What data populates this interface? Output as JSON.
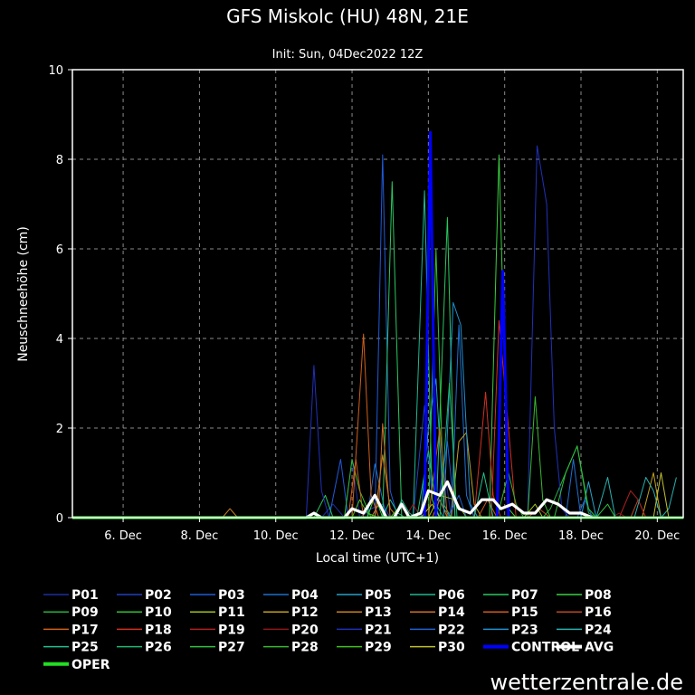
{
  "chart_data": {
    "type": "line",
    "title": "GFS Miskolc (HU) 48N, 21E",
    "subtitle": "Init: Sun, 04Dec2022 12Z",
    "xlabel": "Local time (UTC+1)",
    "ylabel": "Neuschneehöhe (cm)",
    "ylim": [
      0,
      10
    ],
    "y_ticks": [
      "0",
      "2",
      "4",
      "6",
      "8",
      "10"
    ],
    "x_ticks": [
      {
        "t": 1.0,
        "label": "6. Dec"
      },
      {
        "t": 3.0,
        "label": "8. Dec"
      },
      {
        "t": 5.0,
        "label": "10. Dec"
      },
      {
        "t": 7.0,
        "label": "12. Dec"
      },
      {
        "t": 9.0,
        "label": "14. Dec"
      },
      {
        "t": 11.0,
        "label": "16. Dec"
      },
      {
        "t": 13.0,
        "label": "18. Dec"
      },
      {
        "t": 15.0,
        "label": "20. Dec"
      }
    ],
    "xlim": [
      -0.33,
      15.68
    ],
    "grid": true,
    "legend_position": "bottom",
    "series": [
      {
        "name": "P01",
        "color": "#1a2fa0",
        "width": 1,
        "points": [
          [
            6.2,
            0
          ],
          [
            6.5,
            0.3
          ],
          [
            6.8,
            0
          ],
          [
            7.0,
            1.3
          ],
          [
            7.2,
            0
          ],
          [
            9.2,
            0
          ],
          [
            9.4,
            1.2
          ],
          [
            9.6,
            0
          ],
          [
            11.0,
            0
          ]
        ]
      },
      {
        "name": "P02",
        "color": "#2040c0",
        "width": 1,
        "points": [
          [
            7.2,
            0
          ],
          [
            7.5,
            0.2
          ],
          [
            7.8,
            0.3
          ],
          [
            8.0,
            0
          ],
          [
            8.6,
            0
          ],
          [
            8.9,
            2.5
          ],
          [
            9.1,
            0.4
          ],
          [
            9.3,
            0
          ],
          [
            9.7,
            0
          ]
        ]
      },
      {
        "name": "P03",
        "color": "#1f5ad8",
        "width": 1,
        "points": [
          [
            6.4,
            0
          ],
          [
            6.7,
            1.3
          ],
          [
            6.9,
            0
          ],
          [
            7.6,
            0
          ],
          [
            7.8,
            8.1
          ],
          [
            8.0,
            0.6
          ],
          [
            8.2,
            0
          ],
          [
            9.2,
            0
          ],
          [
            9.5,
            1.7
          ],
          [
            9.7,
            0
          ]
        ]
      },
      {
        "name": "P04",
        "color": "#1e6fd0",
        "width": 1,
        "points": [
          [
            7.4,
            0
          ],
          [
            7.6,
            1.2
          ],
          [
            7.9,
            0
          ],
          [
            9.6,
            0
          ],
          [
            9.8,
            4.3
          ],
          [
            10.0,
            0.5
          ],
          [
            10.2,
            0
          ],
          [
            12.6,
            0
          ],
          [
            12.8,
            1.3
          ],
          [
            13.0,
            0
          ]
        ]
      },
      {
        "name": "P05",
        "color": "#25a0c8",
        "width": 1,
        "points": [
          [
            8.8,
            0
          ],
          [
            9.0,
            2.0
          ],
          [
            9.2,
            3.1
          ],
          [
            9.4,
            0.2
          ],
          [
            9.6,
            0
          ],
          [
            13.0,
            0
          ],
          [
            13.2,
            0.8
          ],
          [
            13.4,
            0
          ]
        ]
      },
      {
        "name": "P06",
        "color": "#20b890",
        "width": 1,
        "points": [
          [
            7.8,
            0
          ],
          [
            8.0,
            0.4
          ],
          [
            8.2,
            0.1
          ],
          [
            8.4,
            0
          ],
          [
            8.6,
            0
          ],
          [
            8.9,
            7.3
          ],
          [
            9.1,
            0.4
          ],
          [
            9.3,
            0
          ],
          [
            11.0,
            0
          ]
        ]
      },
      {
        "name": "P07",
        "color": "#2ac860",
        "width": 1,
        "points": [
          [
            6.0,
            0
          ],
          [
            6.3,
            0.5
          ],
          [
            6.5,
            0
          ],
          [
            7.8,
            0
          ],
          [
            8.05,
            7.5
          ],
          [
            8.3,
            0
          ],
          [
            9.2,
            0
          ],
          [
            9.5,
            6.7
          ],
          [
            9.7,
            0
          ]
        ]
      },
      {
        "name": "P08",
        "color": "#3ad040",
        "width": 1,
        "points": [
          [
            7.4,
            0
          ],
          [
            7.6,
            0.5
          ],
          [
            7.8,
            0
          ],
          [
            10.6,
            0
          ],
          [
            10.85,
            8.1
          ],
          [
            11.1,
            0.2
          ],
          [
            11.3,
            0
          ]
        ]
      },
      {
        "name": "P09",
        "color": "#28b040",
        "width": 1,
        "points": [
          [
            12.0,
            0
          ],
          [
            12.2,
            0.2
          ],
          [
            12.6,
            1.0
          ],
          [
            12.9,
            1.6
          ],
          [
            13.2,
            0.1
          ],
          [
            13.4,
            0
          ]
        ]
      },
      {
        "name": "P10",
        "color": "#30c030",
        "width": 1,
        "points": [
          [
            6.8,
            0
          ],
          [
            7.0,
            1.3
          ],
          [
            7.2,
            0.6
          ],
          [
            7.5,
            0
          ],
          [
            9.0,
            0
          ],
          [
            9.2,
            6.0
          ],
          [
            9.4,
            0.3
          ],
          [
            9.6,
            0
          ]
        ]
      },
      {
        "name": "P11",
        "color": "#a0c020",
        "width": 1,
        "points": [
          [
            9.0,
            0
          ],
          [
            9.3,
            0.5
          ],
          [
            9.7,
            0.4
          ],
          [
            10.0,
            0
          ],
          [
            11.5,
            0
          ],
          [
            11.8,
            0.3
          ],
          [
            12.0,
            0
          ]
        ]
      },
      {
        "name": "P12",
        "color": "#c0a020",
        "width": 1,
        "points": [
          [
            9.6,
            0
          ],
          [
            9.8,
            1.7
          ],
          [
            10.0,
            1.9
          ],
          [
            10.2,
            0.3
          ],
          [
            10.4,
            0
          ],
          [
            14.6,
            0
          ],
          [
            14.9,
            1.0
          ],
          [
            15.1,
            0
          ]
        ]
      },
      {
        "name": "P13",
        "color": "#c88020",
        "width": 1,
        "points": [
          [
            3.6,
            0
          ],
          [
            3.8,
            0.2
          ],
          [
            4.0,
            0
          ],
          [
            7.6,
            0
          ],
          [
            7.8,
            1.4
          ],
          [
            8.0,
            0.2
          ],
          [
            8.2,
            0
          ]
        ]
      },
      {
        "name": "P14",
        "color": "#d07028",
        "width": 1,
        "points": [
          [
            7.5,
            0
          ],
          [
            7.7,
            0.3
          ],
          [
            7.8,
            2.1
          ],
          [
            8.0,
            0
          ],
          [
            9.1,
            0
          ],
          [
            9.3,
            0.4
          ],
          [
            9.5,
            0
          ]
        ]
      },
      {
        "name": "P15",
        "color": "#d05a20",
        "width": 1,
        "points": [
          [
            6.9,
            0
          ],
          [
            7.1,
            1.3
          ],
          [
            7.3,
            0
          ],
          [
            10.3,
            0
          ],
          [
            10.55,
            0.4
          ],
          [
            10.8,
            0
          ]
        ]
      },
      {
        "name": "P16",
        "color": "#b84a20",
        "width": 1,
        "points": [
          [
            11.6,
            0
          ],
          [
            11.9,
            0.2
          ],
          [
            12.2,
            0
          ],
          [
            14.3,
            0
          ],
          [
            14.5,
            0.4
          ],
          [
            14.7,
            0
          ]
        ]
      },
      {
        "name": "P17",
        "color": "#d06018",
        "width": 1,
        "points": [
          [
            7.0,
            0
          ],
          [
            7.3,
            4.1
          ],
          [
            7.5,
            0.5
          ],
          [
            7.7,
            0
          ],
          [
            9.0,
            0
          ],
          [
            9.3,
            2.0
          ],
          [
            9.5,
            0
          ]
        ]
      },
      {
        "name": "P18",
        "color": "#d03020",
        "width": 1,
        "points": [
          [
            10.2,
            0
          ],
          [
            10.5,
            2.8
          ],
          [
            10.7,
            0.5
          ],
          [
            10.9,
            0
          ],
          [
            10.65,
            0
          ],
          [
            10.85,
            4.4
          ],
          [
            11.1,
            2.0
          ],
          [
            11.3,
            0
          ]
        ]
      },
      {
        "name": "P19",
        "color": "#b02020",
        "width": 1,
        "points": [
          [
            14.0,
            0
          ],
          [
            14.3,
            0.6
          ],
          [
            14.5,
            0.4
          ],
          [
            14.7,
            0
          ]
        ]
      },
      {
        "name": "P20",
        "color": "#901818",
        "width": 1,
        "points": [
          [
            8.4,
            0
          ],
          [
            8.6,
            0.3
          ],
          [
            8.8,
            0
          ],
          [
            13.8,
            0
          ],
          [
            14.0,
            0.1
          ],
          [
            14.2,
            0
          ]
        ]
      },
      {
        "name": "P21",
        "color": "#2030b8",
        "width": 1,
        "points": [
          [
            5.8,
            0
          ],
          [
            6.0,
            3.4
          ],
          [
            6.2,
            0.6
          ],
          [
            6.4,
            0
          ],
          [
            11.6,
            0
          ],
          [
            11.85,
            8.3
          ],
          [
            12.1,
            7.0
          ],
          [
            12.3,
            2.0
          ],
          [
            12.5,
            0.2
          ],
          [
            12.7,
            0
          ]
        ]
      },
      {
        "name": "P22",
        "color": "#2060d0",
        "width": 1,
        "points": [
          [
            9.5,
            0
          ],
          [
            9.8,
            0.5
          ],
          [
            10.0,
            0
          ],
          [
            12.9,
            0
          ],
          [
            13.1,
            0.4
          ],
          [
            13.3,
            0
          ]
        ]
      },
      {
        "name": "P23",
        "color": "#2090d0",
        "width": 1,
        "points": [
          [
            9.4,
            0
          ],
          [
            9.65,
            4.8
          ],
          [
            9.85,
            4.3
          ],
          [
            10.1,
            0.3
          ],
          [
            10.3,
            0
          ]
        ]
      },
      {
        "name": "P24",
        "color": "#28b0b0",
        "width": 1,
        "points": [
          [
            13.4,
            0
          ],
          [
            13.7,
            0.9
          ],
          [
            13.9,
            0
          ],
          [
            14.4,
            0
          ],
          [
            14.7,
            0.9
          ],
          [
            14.9,
            0.6
          ],
          [
            15.1,
            0
          ],
          [
            15.3,
            0.2
          ],
          [
            15.5,
            0.9
          ]
        ]
      },
      {
        "name": "P25",
        "color": "#20c090",
        "width": 1,
        "points": [
          [
            8.1,
            0
          ],
          [
            8.3,
            0.4
          ],
          [
            8.5,
            0.1
          ],
          [
            8.7,
            0
          ],
          [
            10.2,
            0
          ],
          [
            10.45,
            1.0
          ],
          [
            10.7,
            0
          ]
        ]
      },
      {
        "name": "P26",
        "color": "#20b870",
        "width": 1,
        "points": [
          [
            8.7,
            0
          ],
          [
            9.0,
            1.5
          ],
          [
            9.2,
            0.3
          ],
          [
            9.4,
            0
          ],
          [
            9.3,
            0
          ],
          [
            9.55,
            3.0
          ],
          [
            9.75,
            0
          ]
        ]
      },
      {
        "name": "P27",
        "color": "#30c040",
        "width": 1,
        "points": [
          [
            12.3,
            0
          ],
          [
            12.6,
            1.0
          ],
          [
            12.9,
            1.6
          ],
          [
            13.2,
            0.2
          ],
          [
            13.4,
            0
          ],
          [
            13.7,
            0.3
          ],
          [
            13.9,
            0
          ]
        ]
      },
      {
        "name": "P28",
        "color": "#38b830",
        "width": 1,
        "points": [
          [
            10.8,
            0
          ],
          [
            11.1,
            1.0
          ],
          [
            11.3,
            0.3
          ],
          [
            11.5,
            0
          ],
          [
            11.6,
            0
          ],
          [
            11.8,
            2.7
          ],
          [
            12.0,
            0.4
          ],
          [
            12.2,
            0
          ]
        ]
      },
      {
        "name": "P29",
        "color": "#40c020",
        "width": 1,
        "points": [
          [
            7.0,
            0
          ],
          [
            7.2,
            0.4
          ],
          [
            7.4,
            0.1
          ],
          [
            7.7,
            0
          ],
          [
            8.0,
            0
          ],
          [
            8.3,
            0.3
          ],
          [
            8.5,
            0
          ]
        ]
      },
      {
        "name": "P30",
        "color": "#c0c030",
        "width": 1,
        "points": [
          [
            8.8,
            0
          ],
          [
            9.1,
            0.3
          ],
          [
            9.3,
            0
          ],
          [
            14.9,
            0
          ],
          [
            15.1,
            1.0
          ],
          [
            15.3,
            0
          ]
        ]
      },
      {
        "name": "CONTROL",
        "color": "#0000ff",
        "width": 3,
        "points": [
          [
            8.9,
            0
          ],
          [
            9.05,
            8.6
          ],
          [
            9.2,
            0
          ],
          [
            10.8,
            0
          ],
          [
            10.95,
            5.5
          ],
          [
            11.1,
            0
          ]
        ]
      },
      {
        "name": "AVG",
        "color": "#ffffff",
        "width": 3.2,
        "points": [
          [
            -0.33,
            0
          ],
          [
            5.8,
            0
          ],
          [
            6.0,
            0.1
          ],
          [
            6.2,
            0
          ],
          [
            6.8,
            0
          ],
          [
            7.0,
            0.2
          ],
          [
            7.3,
            0.1
          ],
          [
            7.6,
            0.5
          ],
          [
            7.9,
            0
          ],
          [
            8.1,
            0
          ],
          [
            8.3,
            0.3
          ],
          [
            8.5,
            0
          ],
          [
            8.8,
            0.1
          ],
          [
            9.0,
            0.6
          ],
          [
            9.3,
            0.5
          ],
          [
            9.5,
            0.8
          ],
          [
            9.8,
            0.2
          ],
          [
            10.1,
            0.1
          ],
          [
            10.4,
            0.4
          ],
          [
            10.7,
            0.4
          ],
          [
            10.9,
            0.2
          ],
          [
            11.2,
            0.3
          ],
          [
            11.5,
            0.1
          ],
          [
            11.8,
            0.1
          ],
          [
            12.1,
            0.4
          ],
          [
            12.4,
            0.3
          ],
          [
            12.7,
            0.1
          ],
          [
            13.0,
            0.1
          ],
          [
            13.3,
            0
          ]
        ]
      },
      {
        "name": "OPER",
        "color": "#22dd22",
        "width": 3,
        "points": [
          [
            -0.33,
            0
          ],
          [
            15.68,
            0
          ]
        ]
      }
    ]
  },
  "brand": "wetterzentrale.de"
}
